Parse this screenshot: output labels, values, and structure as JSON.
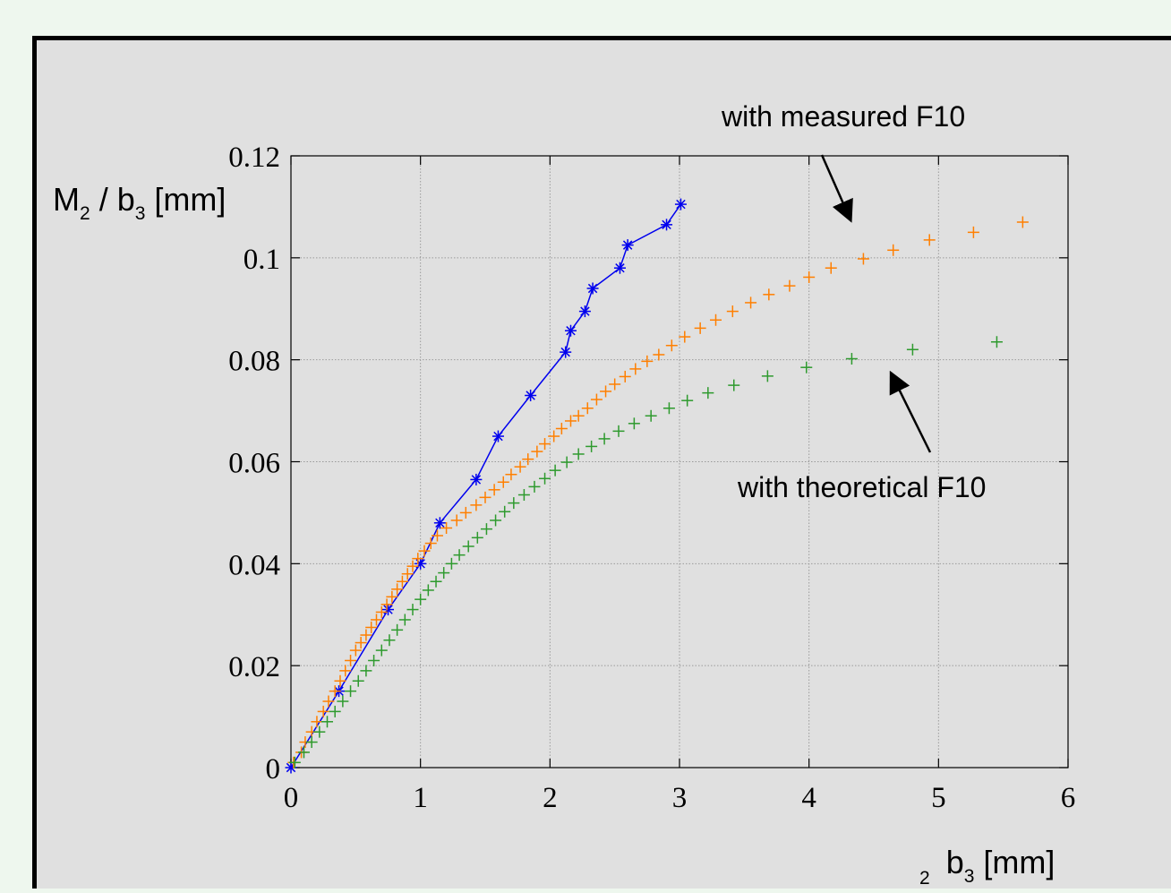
{
  "chart_data": {
    "type": "scatter",
    "xlim": [
      0,
      6
    ],
    "ylim": [
      0,
      0.12
    ],
    "xticks": [
      "0",
      "1",
      "2",
      "3",
      "4",
      "5",
      "6"
    ],
    "yticks": [
      "0",
      "0.02",
      "0.04",
      "0.06",
      "0.08",
      "0.1",
      "0.12"
    ],
    "grid": true,
    "ylabel": {
      "main": "M",
      "sub1": "2",
      "sep": " / b",
      "sub2": "3",
      "unit": " [mm]"
    },
    "xlabel": {
      "sub": "2",
      "main": "b",
      "sub2": "3",
      "unit": " [mm]"
    },
    "annotations": [
      {
        "text": "with measured F10",
        "target": [
          4.6,
          0.102
        ]
      },
      {
        "text": "with theoretical F10",
        "target": [
          4.7,
          0.081
        ]
      }
    ],
    "series": [
      {
        "color": "#0000ee",
        "marker": "asterisk",
        "line": true,
        "x": [
          0,
          0.37,
          0.75,
          1.0,
          1.15,
          1.43,
          1.6,
          1.85,
          2.12,
          2.16,
          2.27,
          2.33,
          2.54,
          2.6,
          2.9,
          3.01
        ],
        "y": [
          0,
          0.015,
          0.031,
          0.04,
          0.048,
          0.0565,
          0.065,
          0.073,
          0.0815,
          0.0857,
          0.0895,
          0.094,
          0.098,
          0.1025,
          0.1065,
          0.1105
        ]
      },
      {
        "color": "#ff7f00",
        "marker": "plus",
        "line": false,
        "x": [
          0.02,
          0.08,
          0.11,
          0.16,
          0.2,
          0.25,
          0.29,
          0.34,
          0.38,
          0.42,
          0.46,
          0.5,
          0.54,
          0.58,
          0.62,
          0.66,
          0.7,
          0.74,
          0.78,
          0.82,
          0.86,
          0.9,
          0.94,
          0.98,
          1.03,
          1.08,
          1.13,
          1.2,
          1.28,
          1.35,
          1.43,
          1.5,
          1.57,
          1.64,
          1.7,
          1.77,
          1.83,
          1.9,
          1.96,
          2.03,
          2.09,
          2.16,
          2.22,
          2.29,
          2.36,
          2.43,
          2.5,
          2.58,
          2.66,
          2.75,
          2.84,
          2.94,
          3.04,
          3.16,
          3.28,
          3.41,
          3.55,
          3.69,
          3.85,
          4.0,
          4.17,
          4.42,
          4.65,
          4.93,
          5.27,
          5.65
        ],
        "y": [
          0.001,
          0.003,
          0.005,
          0.007,
          0.009,
          0.011,
          0.013,
          0.015,
          0.017,
          0.019,
          0.021,
          0.023,
          0.0245,
          0.026,
          0.0275,
          0.029,
          0.0305,
          0.032,
          0.0335,
          0.035,
          0.0365,
          0.038,
          0.0395,
          0.041,
          0.0425,
          0.044,
          0.0455,
          0.047,
          0.0485,
          0.05,
          0.0515,
          0.053,
          0.0545,
          0.056,
          0.0575,
          0.059,
          0.0605,
          0.062,
          0.0635,
          0.065,
          0.0665,
          0.068,
          0.069,
          0.0705,
          0.0722,
          0.0738,
          0.0752,
          0.0767,
          0.0782,
          0.0797,
          0.081,
          0.0828,
          0.0845,
          0.0862,
          0.0878,
          0.0895,
          0.0912,
          0.0928,
          0.0945,
          0.0962,
          0.098,
          0.0998,
          0.1015,
          0.1035,
          0.105,
          0.107
        ]
      },
      {
        "color": "#2e9a2e",
        "marker": "plus",
        "line": false,
        "x": [
          0.03,
          0.1,
          0.16,
          0.22,
          0.28,
          0.34,
          0.4,
          0.46,
          0.52,
          0.58,
          0.64,
          0.7,
          0.76,
          0.82,
          0.88,
          0.94,
          1.0,
          1.06,
          1.12,
          1.18,
          1.24,
          1.3,
          1.37,
          1.44,
          1.51,
          1.58,
          1.65,
          1.72,
          1.8,
          1.88,
          1.96,
          2.04,
          2.13,
          2.22,
          2.32,
          2.42,
          2.53,
          2.65,
          2.78,
          2.92,
          3.06,
          3.22,
          3.42,
          3.68,
          3.98,
          4.33,
          4.8,
          5.45
        ],
        "y": [
          0.001,
          0.003,
          0.005,
          0.007,
          0.009,
          0.011,
          0.013,
          0.015,
          0.017,
          0.019,
          0.021,
          0.023,
          0.025,
          0.027,
          0.029,
          0.031,
          0.033,
          0.0348,
          0.0365,
          0.0382,
          0.04,
          0.0417,
          0.0434,
          0.0451,
          0.0468,
          0.0485,
          0.0502,
          0.0519,
          0.0535,
          0.0551,
          0.0567,
          0.0583,
          0.0599,
          0.0615,
          0.063,
          0.0645,
          0.066,
          0.0675,
          0.069,
          0.0705,
          0.072,
          0.0735,
          0.075,
          0.0768,
          0.0785,
          0.0802,
          0.082,
          0.0835
        ]
      }
    ]
  }
}
